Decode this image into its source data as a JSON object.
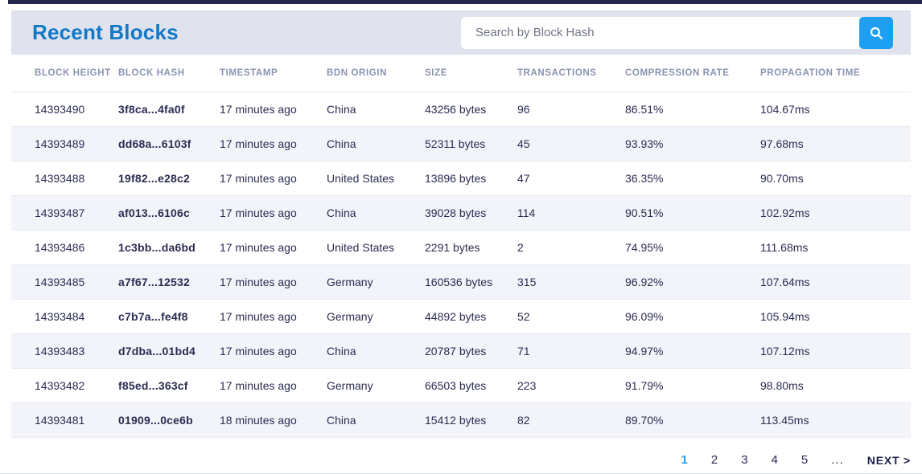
{
  "header": {
    "title": "Recent Blocks",
    "search": {
      "placeholder": "Search by Block Hash",
      "icon": "magnifier-icon"
    }
  },
  "colors": {
    "title_blue": "#1279c7",
    "accent_blue": "#1e9ff2",
    "header_band": "#e0e2ed",
    "row_alt": "#f2f4fa",
    "row_text": "#2b2c52",
    "column_header_text": "#8b93b1",
    "top_strip": "#23284a"
  },
  "table": {
    "columns": [
      {
        "key": "height",
        "label": "BLOCK HEIGHT"
      },
      {
        "key": "hash",
        "label": "BLOCK HASH"
      },
      {
        "key": "timestamp",
        "label": "TIMESTAMP"
      },
      {
        "key": "origin",
        "label": "BDN ORIGIN"
      },
      {
        "key": "size",
        "label": "SIZE"
      },
      {
        "key": "transactions",
        "label": "TRANSACTIONS"
      },
      {
        "key": "compression_rate",
        "label": "COMPRESSION RATE"
      },
      {
        "key": "propagation_time",
        "label": "PROPAGATION TIME"
      }
    ],
    "rows": [
      {
        "height": "14393490",
        "hash": "3f8ca...4fa0f",
        "timestamp": "17 minutes ago",
        "origin": "China",
        "size": "43256 bytes",
        "transactions": "96",
        "compression_rate": "86.51%",
        "propagation_time": "104.67ms"
      },
      {
        "height": "14393489",
        "hash": "dd68a...6103f",
        "timestamp": "17 minutes ago",
        "origin": "China",
        "size": "52311 bytes",
        "transactions": "45",
        "compression_rate": "93.93%",
        "propagation_time": "97.68ms"
      },
      {
        "height": "14393488",
        "hash": "19f82...e28c2",
        "timestamp": "17 minutes ago",
        "origin": "United States",
        "size": "13896 bytes",
        "transactions": "47",
        "compression_rate": "36.35%",
        "propagation_time": "90.70ms"
      },
      {
        "height": "14393487",
        "hash": "af013...6106c",
        "timestamp": "17 minutes ago",
        "origin": "China",
        "size": "39028 bytes",
        "transactions": "114",
        "compression_rate": "90.51%",
        "propagation_time": "102.92ms"
      },
      {
        "height": "14393486",
        "hash": "1c3bb...da6bd",
        "timestamp": "17 minutes ago",
        "origin": "United States",
        "size": "2291 bytes",
        "transactions": "2",
        "compression_rate": "74.95%",
        "propagation_time": "111.68ms"
      },
      {
        "height": "14393485",
        "hash": "a7f67...12532",
        "timestamp": "17 minutes ago",
        "origin": "Germany",
        "size": "160536 bytes",
        "transactions": "315",
        "compression_rate": "96.92%",
        "propagation_time": "107.64ms"
      },
      {
        "height": "14393484",
        "hash": "c7b7a...fe4f8",
        "timestamp": "17 minutes ago",
        "origin": "Germany",
        "size": "44892 bytes",
        "transactions": "52",
        "compression_rate": "96.09%",
        "propagation_time": "105.94ms"
      },
      {
        "height": "14393483",
        "hash": "d7dba...01bd4",
        "timestamp": "17 minutes ago",
        "origin": "China",
        "size": "20787 bytes",
        "transactions": "71",
        "compression_rate": "94.97%",
        "propagation_time": "107.12ms"
      },
      {
        "height": "14393482",
        "hash": "f85ed...363cf",
        "timestamp": "17 minutes ago",
        "origin": "Germany",
        "size": "66503 bytes",
        "transactions": "223",
        "compression_rate": "91.79%",
        "propagation_time": "98.80ms"
      },
      {
        "height": "14393481",
        "hash": "01909...0ce6b",
        "timestamp": "18 minutes ago",
        "origin": "China",
        "size": "15412 bytes",
        "transactions": "82",
        "compression_rate": "89.70%",
        "propagation_time": "113.45ms"
      }
    ]
  },
  "pagination": {
    "pages": [
      "1",
      "2",
      "3",
      "4",
      "5"
    ],
    "active": "1",
    "ellipsis": "...",
    "next_label": "NEXT >"
  }
}
